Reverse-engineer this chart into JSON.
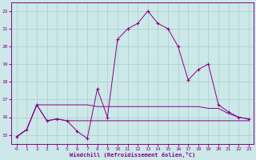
{
  "xlabel": "Windchill (Refroidissement éolien,°C)",
  "ylabel": "",
  "background_color": "#cce8e8",
  "grid_color": "#aacccc",
  "line_color": "#880088",
  "xlim": [
    -0.5,
    23.5
  ],
  "ylim": [
    14.5,
    22.5
  ],
  "yticks": [
    15,
    16,
    17,
    18,
    19,
    20,
    21,
    22
  ],
  "xticks": [
    0,
    1,
    2,
    3,
    4,
    5,
    6,
    7,
    8,
    9,
    10,
    11,
    12,
    13,
    14,
    15,
    16,
    17,
    18,
    19,
    20,
    21,
    22,
    23
  ],
  "series": [
    {
      "x": [
        0,
        1,
        2,
        3,
        4,
        5,
        6,
        7,
        8,
        9,
        10,
        11,
        12,
        13,
        14,
        15,
        16,
        17,
        18,
        19,
        20,
        21,
        22,
        23
      ],
      "y": [
        14.9,
        15.3,
        16.7,
        15.8,
        15.9,
        15.8,
        15.2,
        14.8,
        17.6,
        16.0,
        20.4,
        21.0,
        21.3,
        22.0,
        21.3,
        21.0,
        20.0,
        18.1,
        18.7,
        19.0,
        16.7,
        16.3,
        16.0,
        15.9
      ],
      "marker": true
    },
    {
      "x": [
        0,
        1,
        2,
        3,
        4,
        5,
        6,
        7,
        8,
        9,
        10,
        11,
        12,
        13,
        14,
        15,
        16,
        17,
        18,
        19,
        20,
        21,
        22,
        23
      ],
      "y": [
        14.9,
        15.3,
        16.7,
        16.7,
        16.7,
        16.7,
        16.7,
        16.7,
        16.6,
        16.6,
        16.6,
        16.6,
        16.6,
        16.6,
        16.6,
        16.6,
        16.6,
        16.6,
        16.6,
        16.5,
        16.5,
        16.2,
        16.0,
        15.9
      ],
      "marker": false
    },
    {
      "x": [
        0,
        1,
        2,
        3,
        4,
        5,
        6,
        7,
        8,
        9,
        10,
        11,
        12,
        13,
        14,
        15,
        16,
        17,
        18,
        19,
        20,
        21,
        22,
        23
      ],
      "y": [
        14.9,
        15.3,
        16.7,
        15.8,
        15.9,
        15.8,
        15.8,
        15.8,
        15.8,
        15.8,
        15.8,
        15.8,
        15.8,
        15.8,
        15.8,
        15.8,
        15.8,
        15.8,
        15.8,
        15.8,
        15.8,
        15.8,
        15.8,
        15.8
      ],
      "marker": false
    }
  ]
}
